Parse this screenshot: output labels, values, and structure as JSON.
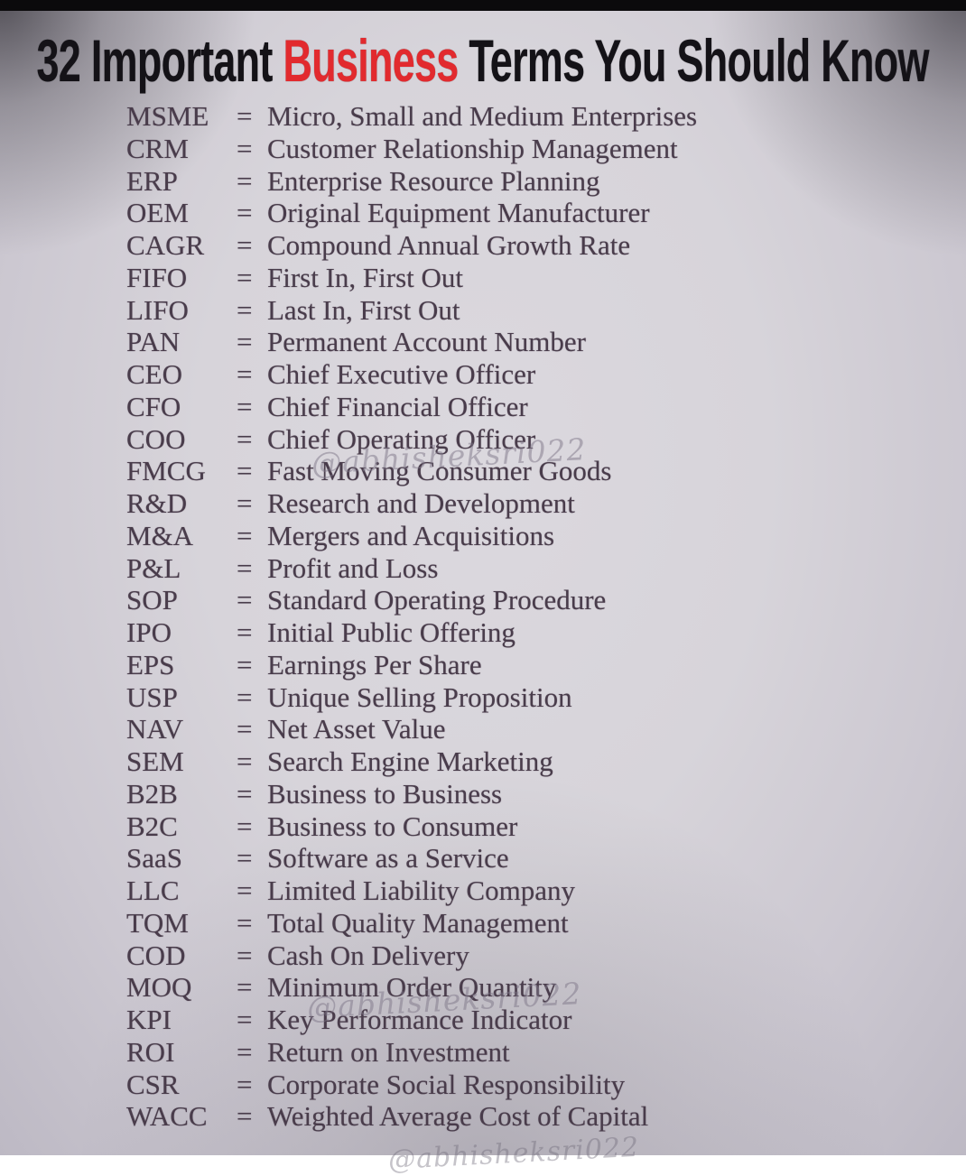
{
  "title": {
    "prefix": "32 Important ",
    "highlight": "Business",
    "suffix": " Terms You Should Know"
  },
  "equals_sign": "=",
  "watermark": {
    "text": "@abhisheksri022"
  },
  "colors": {
    "highlight_red": "#e22a2e",
    "title_black": "#141217",
    "body_text": "#493c4b",
    "background_center": "#dbd8de",
    "background_edge": "#bdb9c4",
    "top_bar": "#0b0a0c"
  },
  "terms": [
    {
      "abbr": "MSME",
      "full": "Micro, Small and Medium Enterprises"
    },
    {
      "abbr": "CRM",
      "full": "Customer Relationship Management"
    },
    {
      "abbr": "ERP",
      "full": "Enterprise Resource Planning"
    },
    {
      "abbr": "OEM",
      "full": "Original Equipment Manufacturer"
    },
    {
      "abbr": "CAGR",
      "full": "Compound Annual Growth Rate"
    },
    {
      "abbr": "FIFO",
      "full": "First In, First Out"
    },
    {
      "abbr": "LIFO",
      "full": "Last In, First Out"
    },
    {
      "abbr": "PAN",
      "full": "Permanent Account Number"
    },
    {
      "abbr": "CEO",
      "full": "Chief Executive Officer"
    },
    {
      "abbr": "CFO",
      "full": "Chief Financial Officer"
    },
    {
      "abbr": "COO",
      "full": "Chief Operating Officer"
    },
    {
      "abbr": "FMCG",
      "full": "Fast Moving Consumer Goods"
    },
    {
      "abbr": "R&D",
      "full": "Research and Development"
    },
    {
      "abbr": "M&A",
      "full": "Mergers and Acquisitions"
    },
    {
      "abbr": "P&L",
      "full": "Profit and Loss"
    },
    {
      "abbr": "SOP",
      "full": "Standard Operating Procedure"
    },
    {
      "abbr": "IPO",
      "full": "Initial Public Offering"
    },
    {
      "abbr": "EPS",
      "full": "Earnings Per Share"
    },
    {
      "abbr": "USP",
      "full": "Unique Selling Proposition"
    },
    {
      "abbr": "NAV",
      "full": "Net Asset Value"
    },
    {
      "abbr": "SEM",
      "full": "Search Engine Marketing"
    },
    {
      "abbr": "B2B",
      "full": "Business to Business"
    },
    {
      "abbr": "B2C",
      "full": "Business to Consumer"
    },
    {
      "abbr": "SaaS",
      "full": "Software as a Service"
    },
    {
      "abbr": "LLC",
      "full": "Limited Liability Company"
    },
    {
      "abbr": "TQM",
      "full": "Total Quality Management"
    },
    {
      "abbr": "COD",
      "full": "Cash On Delivery"
    },
    {
      "abbr": "MOQ",
      "full": "Minimum Order Quantity"
    },
    {
      "abbr": "KPI",
      "full": "Key Performance Indicator"
    },
    {
      "abbr": "ROI",
      "full": "Return on Investment"
    },
    {
      "abbr": "CSR",
      "full": "Corporate Social Responsibility"
    },
    {
      "abbr": "WACC",
      "full": "Weighted Average Cost of Capital"
    }
  ]
}
